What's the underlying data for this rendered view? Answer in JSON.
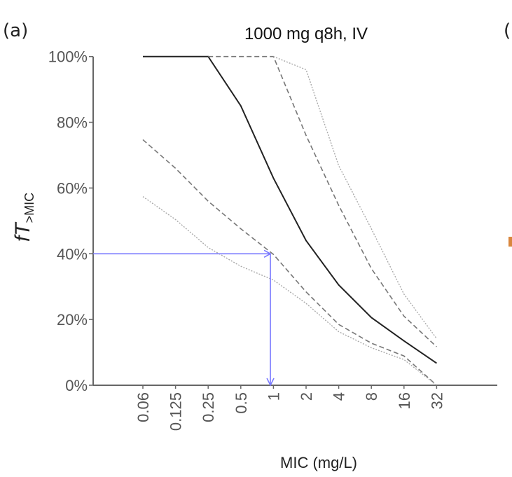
{
  "chart_data": {
    "type": "line",
    "panel_label": "(a)",
    "next_panel_label_fragment": "(",
    "title": "1000 mg q8h, IV",
    "xlabel": "MIC (mg/L)",
    "ylabel_main": "fT",
    "ylabel_sub": ">MIC",
    "x_scale": "log2",
    "x": [
      0.06,
      0.125,
      0.25,
      0.5,
      1,
      2,
      4,
      8,
      16,
      32
    ],
    "x_tick_labels": [
      "0.06",
      "0.125",
      "0.25",
      "0.5",
      "1",
      "2",
      "4",
      "8",
      "16",
      "32"
    ],
    "ylim": [
      0,
      100
    ],
    "y_ticks": [
      0,
      20,
      40,
      60,
      80,
      100
    ],
    "y_tick_labels": [
      "0%",
      "20%",
      "40%",
      "60%",
      "80%",
      "100%"
    ],
    "grid": false,
    "series": [
      {
        "style": "solid",
        "color": "#222222",
        "values": [
          100,
          100,
          100,
          85,
          63,
          44,
          30.5,
          20.6,
          13.5,
          6.7
        ]
      },
      {
        "style": "dashed",
        "color": "#777777",
        "values": [
          null,
          null,
          100,
          100,
          100,
          76,
          54.7,
          35.5,
          21,
          11.7
        ]
      },
      {
        "style": "dotted",
        "color": "#aaaaaa",
        "values": [
          null,
          null,
          null,
          null,
          100,
          96,
          66.8,
          47.6,
          27.7,
          14.2
        ]
      },
      {
        "style": "dashed",
        "color": "#777777",
        "values": [
          74.7,
          66,
          56,
          47.6,
          39.8,
          28.4,
          18.5,
          12.8,
          8.9,
          0
        ]
      },
      {
        "style": "dotted",
        "color": "#aaaaaa",
        "values": [
          57.4,
          50.4,
          41.9,
          36.2,
          32,
          24.9,
          16.3,
          11.4,
          7.8,
          0
        ]
      }
    ],
    "annotation": {
      "type": "arrows",
      "color": "#7b7bff",
      "y_value": 40,
      "x_value": 0.9
    }
  }
}
